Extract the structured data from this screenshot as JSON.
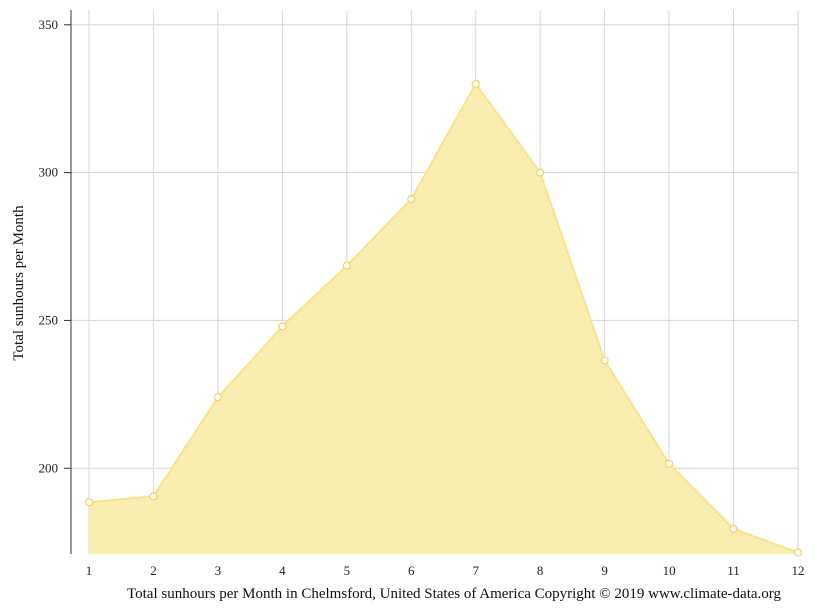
{
  "chart_data": {
    "type": "area",
    "title": "",
    "xlabel": "",
    "ylabel": "Total sunhours per Month",
    "caption": "Total sunhours per Month in Chelmsford, United States of America Copyright © 2019 www.climate-data.org",
    "x": [
      1,
      2,
      3,
      4,
      5,
      6,
      7,
      8,
      9,
      10,
      11,
      12
    ],
    "x_tick_labels": [
      "1",
      "2",
      "3",
      "4",
      "5",
      "6",
      "7",
      "8",
      "9",
      "10",
      "11",
      "12"
    ],
    "y_ticks": [
      200,
      250,
      300,
      350
    ],
    "y_tick_labels": [
      "200",
      "250",
      "300",
      "350"
    ],
    "ylim": [
      171,
      355
    ],
    "xlim": [
      1,
      12
    ],
    "grid": true,
    "legend": "none",
    "series": [
      {
        "values": [
          188.5,
          190.5,
          224,
          248,
          268.5,
          291,
          330,
          300,
          236.5,
          201.5,
          179.5,
          171.5
        ],
        "fill_color": "#f9eeaf",
        "line_color": "#f7e38c",
        "marker_stroke": "#f3d15f",
        "marker_fill": "#ffffff"
      }
    ]
  }
}
